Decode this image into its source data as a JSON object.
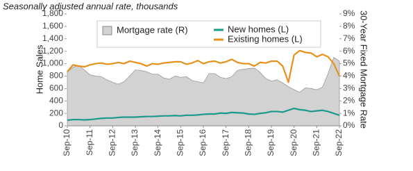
{
  "chart_data": {
    "type": "line",
    "title": "Seasonally adjusted annual rate, thousands",
    "y_label": "Home Sales",
    "y2_label": "30-Year Fixed Mortgage Rate",
    "categories": [
      "Sep-10",
      null,
      null,
      null,
      "Sep-11",
      null,
      null,
      null,
      "Sep-12",
      null,
      null,
      null,
      "Sep-13",
      null,
      null,
      null,
      "Sep-14",
      null,
      null,
      null,
      "Sep-15",
      null,
      null,
      null,
      "Sep-16",
      null,
      null,
      null,
      "Sep-17",
      null,
      null,
      null,
      "Sep-18",
      null,
      null,
      null,
      "Sep-19",
      null,
      null,
      null,
      "Sep-20",
      null,
      null,
      null,
      "Sep-21",
      null,
      null,
      null,
      "Sep-22"
    ],
    "ylim": [
      0,
      1800
    ],
    "yticks": [
      0,
      200,
      400,
      600,
      800,
      {
        "value": 1000,
        "label": "1,000"
      },
      {
        "value": 1200,
        "label": "1,200"
      },
      {
        "value": 1400,
        "label": "1,400"
      },
      {
        "value": 1600,
        "label": "1,600"
      },
      {
        "value": 1800,
        "label": "1,800"
      }
    ],
    "y2lim": [
      0,
      9
    ],
    "y2ticks": [
      {
        "value": 0,
        "label": "0%"
      },
      {
        "value": 1,
        "label": "1%"
      },
      {
        "value": 2,
        "label": "2%"
      },
      {
        "value": 3,
        "label": "3%"
      },
      {
        "value": 4,
        "label": "4%"
      },
      {
        "value": 5,
        "label": "5%"
      },
      {
        "value": 6,
        "label": "6%"
      },
      {
        "value": 7,
        "label": "7%"
      },
      {
        "value": 8,
        "label": "8%"
      },
      {
        "value": 9,
        "label": "9%"
      }
    ],
    "series": [
      {
        "name": "Mortgage rate (R)",
        "type": "area",
        "axis": "y2",
        "color": "#d2d2d2",
        "values": [
          4.35,
          4.7,
          4.85,
          4.5,
          4.1,
          4.0,
          3.95,
          3.7,
          3.5,
          3.35,
          3.55,
          4.0,
          4.5,
          4.45,
          4.35,
          4.15,
          4.15,
          3.85,
          3.75,
          4.0,
          3.9,
          3.95,
          3.65,
          3.55,
          3.45,
          4.2,
          4.2,
          3.9,
          3.8,
          3.95,
          4.45,
          4.55,
          4.6,
          4.65,
          4.3,
          3.8,
          3.6,
          3.7,
          3.45,
          3.15,
          2.9,
          2.7,
          3.05,
          3.0,
          2.9,
          3.1,
          4.2,
          5.5,
          5.2
        ]
      },
      {
        "name": "New homes (L)",
        "type": "line",
        "color": "#1a9a8a",
        "values": [
          90,
          100,
          100,
          95,
          100,
          110,
          120,
          125,
          125,
          135,
          140,
          140,
          140,
          145,
          150,
          150,
          155,
          160,
          160,
          165,
          160,
          170,
          170,
          175,
          185,
          190,
          190,
          205,
          200,
          215,
          210,
          205,
          190,
          185,
          200,
          210,
          230,
          230,
          220,
          250,
          280,
          260,
          250,
          230,
          240,
          250,
          230,
          200,
          170
        ]
      },
      {
        "name": "Existing homes (L)",
        "type": "line",
        "color": "#e8901c",
        "values": [
          870,
          980,
          960,
          950,
          980,
          1000,
          1010,
          990,
          1000,
          1020,
          1000,
          1040,
          1020,
          1000,
          960,
          1000,
          990,
          1010,
          1020,
          1030,
          1030,
          990,
          1010,
          1050,
          1000,
          1030,
          1040,
          1010,
          1030,
          1070,
          1020,
          1000,
          1000,
          960,
          1020,
          1010,
          1040,
          1040,
          960,
          700,
          1140,
          1210,
          1180,
          1170,
          1110,
          1150,
          1110,
          1000,
          800
        ]
      }
    ]
  }
}
